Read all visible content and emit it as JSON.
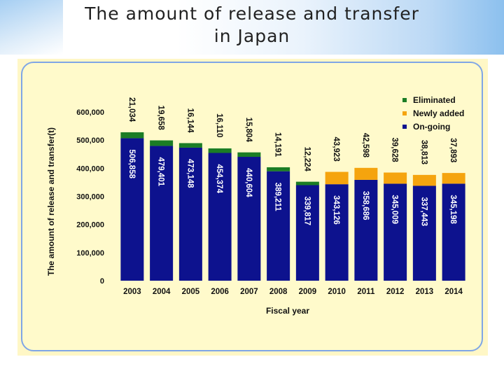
{
  "slide": {
    "title_line1": "The amount of release and transfer",
    "title_line2": "in Japan"
  },
  "colors": {
    "ongoing": "#0d128e",
    "newly_added": "#f5a40e",
    "eliminated": "#1b7d25"
  },
  "chart_data": {
    "type": "bar",
    "stacked": true,
    "title": "",
    "xlabel": "Fiscal year",
    "ylabel": "The amount of release and transfer(t)",
    "ylim": [
      0,
      600000
    ],
    "yticks": [
      "0",
      "100,000",
      "200,000",
      "300,000",
      "400,000",
      "500,000",
      "600,000"
    ],
    "legend_position": "top-right",
    "categories": [
      "2003",
      "2004",
      "2005",
      "2006",
      "2007",
      "2008",
      "2009",
      "2010",
      "2011",
      "2012",
      "2013",
      "2014"
    ],
    "legend": [
      "Eliminated",
      "Newly added",
      "On-going"
    ],
    "ongoing_values": [
      506858,
      479401,
      473148,
      454374,
      440604,
      389211,
      339817,
      343126,
      358686,
      345009,
      337443,
      345198
    ],
    "ongoing_labels": [
      "506,858",
      "479,401",
      "473,148",
      "454,374",
      "440,604",
      "389,211",
      "339,817",
      "343,126",
      "358,686",
      "345,009",
      "337,443",
      "345,198"
    ],
    "top_values": [
      21034,
      19658,
      16144,
      16110,
      15804,
      14191,
      12224,
      43923,
      42598,
      39628,
      38813,
      37893
    ],
    "top_labels": [
      "21,034",
      "19,658",
      "16,144",
      "16,110",
      "15,804",
      "14,191",
      "12,224",
      "43,923",
      "42,598",
      "39,628",
      "38,813",
      "37,893"
    ],
    "top_series": [
      "Eliminated",
      "Eliminated",
      "Eliminated",
      "Eliminated",
      "Eliminated",
      "Eliminated",
      "Eliminated",
      "Newly added",
      "Newly added",
      "Newly added",
      "Newly added",
      "Newly added"
    ]
  }
}
